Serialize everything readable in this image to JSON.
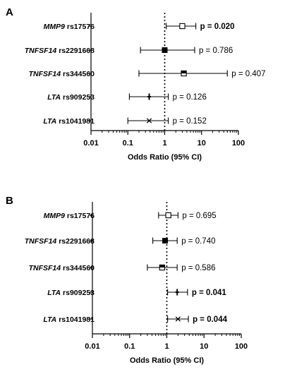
{
  "chart_data": [
    {
      "type": "forest",
      "panel_label": "A",
      "xlabel": "Odds Ratio (95% CI)",
      "x_scale": "log",
      "xlim": [
        0.01,
        100
      ],
      "x_ticks": [
        "0.01",
        "0.1",
        "1",
        "10",
        "100"
      ],
      "reference_line": 1,
      "rows": [
        {
          "gene": "MMP9",
          "snp": "rs17576",
          "or": 3.0,
          "ci": [
            1.1,
            7.0
          ],
          "marker": "open-square",
          "p": "p = 0.020",
          "p_bold": true
        },
        {
          "gene": "TNFSF14",
          "snp": "rs2291668",
          "or": 1.0,
          "ci": [
            0.22,
            6.5
          ],
          "marker": "filled-square",
          "p": "p = 0.786",
          "p_bold": false
        },
        {
          "gene": "TNFSF14",
          "snp": "rs344560",
          "or": 3.3,
          "ci": [
            0.2,
            50
          ],
          "marker": "half-square",
          "p": "p = 0.407",
          "p_bold": false
        },
        {
          "gene": "LTA",
          "snp": "rs909253",
          "or": 0.38,
          "ci": [
            0.11,
            1.25
          ],
          "marker": "plus",
          "p": "p = 0.126",
          "p_bold": false
        },
        {
          "gene": "LTA",
          "snp": "rs1041981",
          "or": 0.38,
          "ci": [
            0.1,
            1.25
          ],
          "marker": "cross",
          "p": "p = 0.152",
          "p_bold": false
        }
      ]
    },
    {
      "type": "forest",
      "panel_label": "B",
      "xlabel": "Odds Ratio (95% CI)",
      "x_scale": "log",
      "xlim": [
        0.01,
        100
      ],
      "x_ticks": [
        "0.01",
        "0.1",
        "1",
        "10",
        "100"
      ],
      "reference_line": 1,
      "rows": [
        {
          "gene": "MMP9",
          "snp": "rs17576",
          "or": 1.1,
          "ci": [
            0.6,
            2.0
          ],
          "marker": "open-square",
          "p": "p = 0.695",
          "p_bold": false
        },
        {
          "gene": "TNFSF14",
          "snp": "rs2291668",
          "or": 0.9,
          "ci": [
            0.42,
            1.9
          ],
          "marker": "filled-square",
          "p": "p = 0.740",
          "p_bold": false
        },
        {
          "gene": "TNFSF14",
          "snp": "rs344560",
          "or": 0.75,
          "ci": [
            0.3,
            1.9
          ],
          "marker": "half-square",
          "p": "p = 0.586",
          "p_bold": false
        },
        {
          "gene": "LTA",
          "snp": "rs909253",
          "or": 1.9,
          "ci": [
            1.05,
            3.6
          ],
          "marker": "plus",
          "p": "p = 0.041",
          "p_bold": true
        },
        {
          "gene": "LTA",
          "snp": "rs1041981",
          "or": 2.0,
          "ci": [
            1.05,
            3.8
          ],
          "marker": "cross",
          "p": "p = 0.044",
          "p_bold": true
        }
      ]
    }
  ]
}
